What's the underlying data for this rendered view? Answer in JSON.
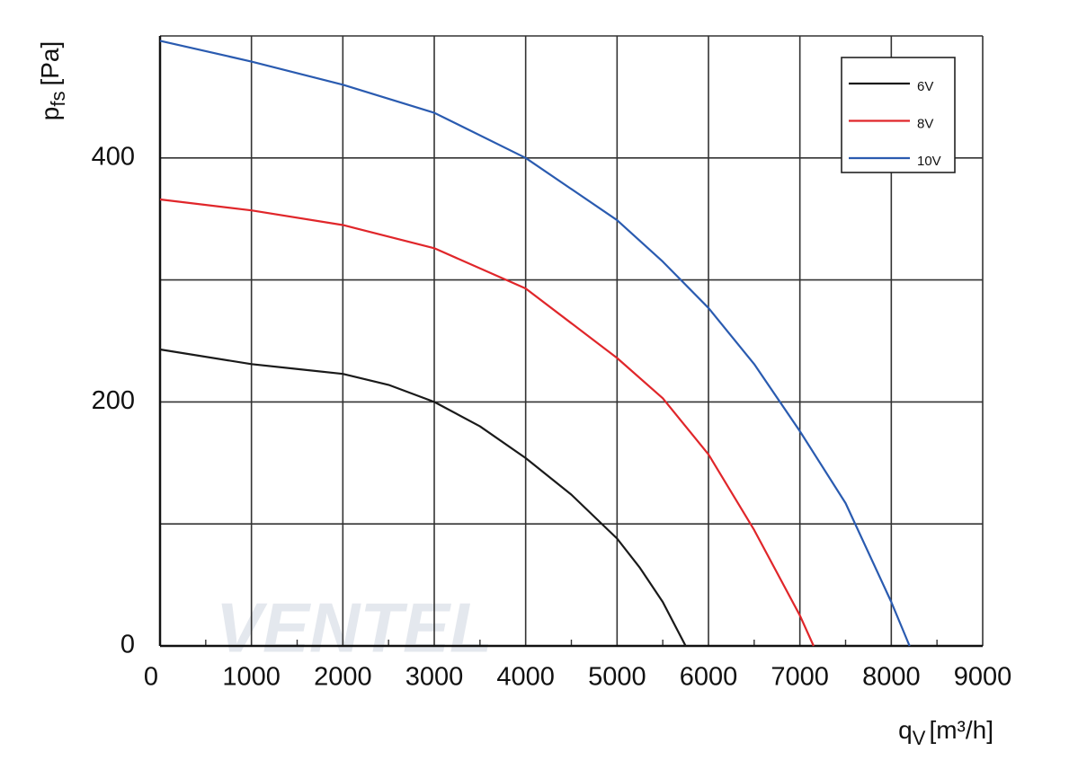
{
  "chart_data": {
    "type": "line",
    "y_label": "p",
    "y_label_sub": "fs",
    "y_label_unit": "[Pa]",
    "x_label": "q",
    "x_label_sub": "V",
    "x_label_unit": "[m³/h]",
    "watermark": "VENTEL",
    "xlim": [
      0,
      9000
    ],
    "xticks": [
      0,
      1000,
      2000,
      3000,
      4000,
      5000,
      6000,
      7000,
      8000,
      9000
    ],
    "xminorticks": [
      500,
      1500,
      2500,
      3500,
      4500,
      5500,
      6500,
      7500,
      8500
    ],
    "ylim": [
      0,
      500
    ],
    "yticks": [
      0,
      200,
      400
    ],
    "ygrid": [
      0,
      100,
      200,
      300,
      400,
      500
    ],
    "grid": true,
    "legend": "upper right",
    "series": [
      {
        "name": "6V",
        "color": "#1a1a1a",
        "x": [
          0,
          1000,
          1500,
          2000,
          2500,
          3000,
          3500,
          4000,
          4500,
          5000,
          5250,
          5500,
          5750
        ],
        "values": [
          243,
          231,
          227,
          223,
          214,
          200,
          180,
          154,
          124,
          88,
          64,
          36,
          0
        ]
      },
      {
        "name": "8V",
        "color": "#e0262a",
        "x": [
          0,
          1000,
          2000,
          3000,
          4000,
          5000,
          5500,
          6000,
          6500,
          7000,
          7150
        ],
        "values": [
          366,
          357,
          345,
          326,
          293,
          236,
          203,
          157,
          95,
          25,
          0
        ]
      },
      {
        "name": "10V",
        "color": "#2a5bb0",
        "x": [
          0,
          1000,
          2000,
          3000,
          4000,
          5000,
          5500,
          6000,
          6500,
          7000,
          7500,
          8000,
          8200
        ],
        "values": [
          496,
          479,
          460,
          437,
          400,
          349,
          315,
          277,
          231,
          176,
          117,
          36,
          0
        ]
      }
    ]
  }
}
